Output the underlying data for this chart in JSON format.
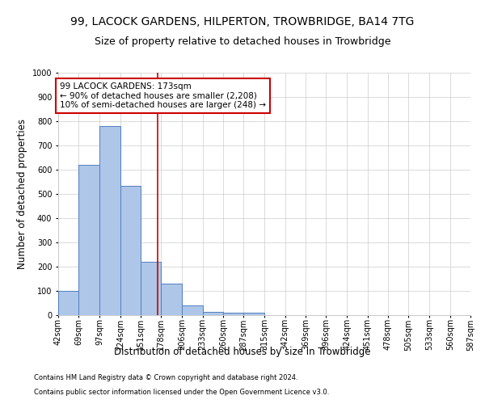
{
  "title": "99, LACOCK GARDENS, HILPERTON, TROWBRIDGE, BA14 7TG",
  "subtitle": "Size of property relative to detached houses in Trowbridge",
  "xlabel": "Distribution of detached houses by size in Trowbridge",
  "ylabel": "Number of detached properties",
  "footnote1": "Contains HM Land Registry data © Crown copyright and database right 2024.",
  "footnote2": "Contains public sector information licensed under the Open Government Licence v3.0.",
  "annotation_title": "99 LACOCK GARDENS: 173sqm",
  "annotation_line1": "← 90% of detached houses are smaller (2,208)",
  "annotation_line2": "10% of semi-detached houses are larger (248) →",
  "property_size": 173,
  "bar_left_edges": [
    42,
    69,
    97,
    124,
    151,
    178,
    206,
    233,
    260,
    287,
    315,
    342,
    369,
    396,
    424,
    451,
    478,
    505,
    533,
    560
  ],
  "bar_widths": [
    27,
    27,
    27,
    27,
    27,
    27,
    27,
    27,
    27,
    27,
    27,
    27,
    27,
    27,
    27,
    27,
    27,
    27,
    27,
    27
  ],
  "bar_heights": [
    100,
    621,
    780,
    535,
    220,
    130,
    41,
    15,
    10,
    10,
    0,
    0,
    0,
    0,
    0,
    0,
    0,
    0,
    0,
    0
  ],
  "bar_color": "#aec6e8",
  "bar_edge_color": "#4f7fbf",
  "vline_x": 173,
  "vline_color": "#cc0000",
  "ylim": [
    0,
    1000
  ],
  "yticks": [
    0,
    100,
    200,
    300,
    400,
    500,
    600,
    700,
    800,
    900,
    1000
  ],
  "xtick_labels": [
    "42sqm",
    "69sqm",
    "97sqm",
    "124sqm",
    "151sqm",
    "178sqm",
    "206sqm",
    "233sqm",
    "260sqm",
    "287sqm",
    "315sqm",
    "342sqm",
    "369sqm",
    "396sqm",
    "424sqm",
    "451sqm",
    "478sqm",
    "505sqm",
    "533sqm",
    "560sqm",
    "587sqm"
  ],
  "grid_color": "#cccccc",
  "background_color": "#ffffff",
  "annotation_box_color": "#cc0000",
  "title_fontsize": 10,
  "subtitle_fontsize": 9,
  "xlabel_fontsize": 8.5,
  "ylabel_fontsize": 8.5,
  "tick_fontsize": 7,
  "annotation_fontsize": 7.5,
  "footnote_fontsize": 6
}
